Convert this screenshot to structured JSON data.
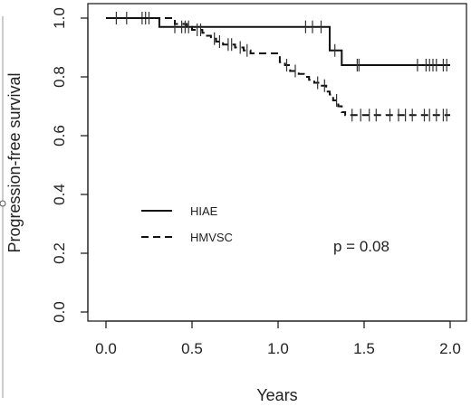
{
  "chart_data": {
    "type": "line",
    "step": true,
    "xlabel": "Years",
    "ylabel": "Progression-free survival",
    "xlim": [
      0,
      2
    ],
    "ylim": [
      0,
      1
    ],
    "x_ticks": [
      "0.0",
      "0.5",
      "1.0",
      "1.5",
      "2.0"
    ],
    "y_ticks": [
      "0.0",
      "0.2",
      "0.4",
      "0.6",
      "0.8",
      "1.0"
    ],
    "legend_placement": "center-left",
    "grid": false,
    "annotation": "p = 0.08",
    "series": [
      {
        "name": "HIAE",
        "dash": "solid",
        "color": "#111111",
        "steps": [
          [
            0,
            1.0
          ],
          [
            0.31,
            0.97
          ],
          [
            1.3,
            0.89
          ],
          [
            1.37,
            0.84
          ],
          [
            2.0,
            0.84
          ]
        ],
        "censor": [
          [
            0.06,
            1.0
          ],
          [
            0.12,
            1.0
          ],
          [
            0.21,
            1.0
          ],
          [
            0.23,
            1.0
          ],
          [
            0.25,
            1.0
          ],
          [
            0.4,
            0.97
          ],
          [
            0.44,
            0.97
          ],
          [
            1.16,
            0.97
          ],
          [
            1.2,
            0.97
          ],
          [
            1.25,
            0.97
          ],
          [
            1.33,
            0.89
          ],
          [
            1.46,
            0.84
          ],
          [
            1.47,
            0.84
          ],
          [
            1.81,
            0.84
          ],
          [
            1.86,
            0.84
          ],
          [
            1.88,
            0.84
          ],
          [
            1.9,
            0.84
          ],
          [
            1.92,
            0.84
          ],
          [
            1.96,
            0.84
          ],
          [
            1.98,
            0.84
          ]
        ]
      },
      {
        "name": "HMVSC",
        "dash": "dashed",
        "color": "#111111",
        "steps": [
          [
            0,
            1.0
          ],
          [
            0.4,
            0.98
          ],
          [
            0.47,
            0.97
          ],
          [
            0.5,
            0.96
          ],
          [
            0.56,
            0.95
          ],
          [
            0.58,
            0.94
          ],
          [
            0.61,
            0.93
          ],
          [
            0.64,
            0.92
          ],
          [
            0.68,
            0.91
          ],
          [
            0.75,
            0.9
          ],
          [
            0.8,
            0.89
          ],
          [
            0.84,
            0.88
          ],
          [
            1.01,
            0.85
          ],
          [
            1.04,
            0.84
          ],
          [
            1.07,
            0.82
          ],
          [
            1.12,
            0.81
          ],
          [
            1.15,
            0.8
          ],
          [
            1.18,
            0.79
          ],
          [
            1.21,
            0.78
          ],
          [
            1.24,
            0.77
          ],
          [
            1.28,
            0.75
          ],
          [
            1.3,
            0.74
          ],
          [
            1.32,
            0.72
          ],
          [
            1.35,
            0.7
          ],
          [
            1.37,
            0.68
          ],
          [
            1.39,
            0.67
          ],
          [
            2.0,
            0.67
          ]
        ],
        "censor": [
          [
            0.46,
            0.97
          ],
          [
            0.48,
            0.97
          ],
          [
            0.53,
            0.96
          ],
          [
            0.55,
            0.96
          ],
          [
            0.63,
            0.93
          ],
          [
            0.66,
            0.92
          ],
          [
            0.71,
            0.91
          ],
          [
            0.73,
            0.91
          ],
          [
            0.78,
            0.9
          ],
          [
            0.82,
            0.89
          ],
          [
            1.05,
            0.84
          ],
          [
            1.1,
            0.82
          ],
          [
            1.23,
            0.78
          ],
          [
            1.27,
            0.77
          ],
          [
            1.34,
            0.72
          ],
          [
            1.43,
            0.67
          ],
          [
            1.48,
            0.67
          ],
          [
            1.53,
            0.67
          ],
          [
            1.57,
            0.67
          ],
          [
            1.65,
            0.67
          ],
          [
            1.7,
            0.67
          ],
          [
            1.74,
            0.67
          ],
          [
            1.78,
            0.67
          ],
          [
            1.85,
            0.67
          ],
          [
            1.88,
            0.67
          ],
          [
            1.92,
            0.67
          ],
          [
            1.96,
            0.67
          ],
          [
            1.98,
            0.67
          ]
        ]
      }
    ]
  }
}
